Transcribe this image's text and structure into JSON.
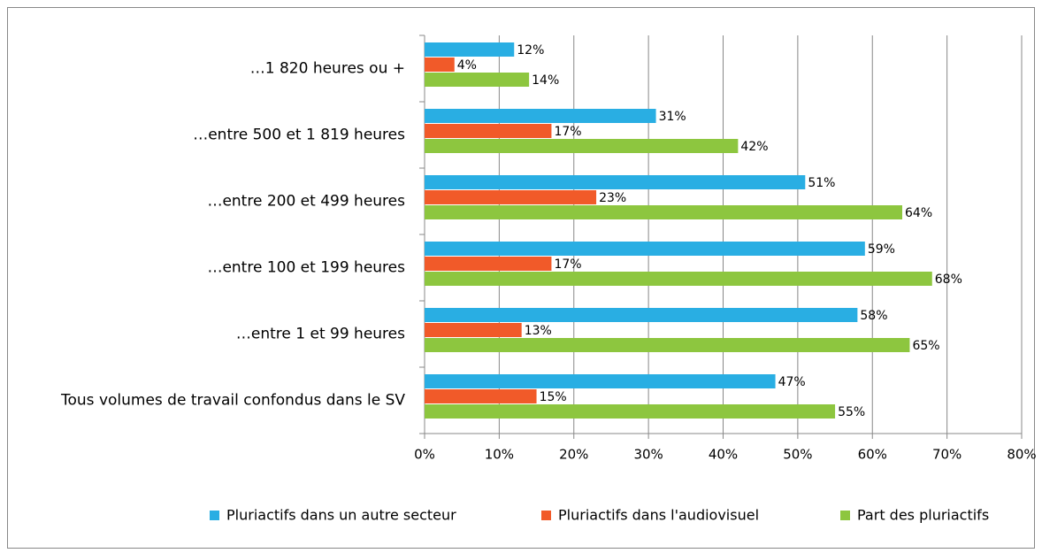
{
  "chart_data": {
    "type": "hbar",
    "categories": [
      "…1 820 heures ou +",
      "…entre 500 et 1 819 heures",
      "…entre 200 et 499 heures",
      "…entre 100 et 199 heures",
      "…entre 1 et 99 heures",
      "Tous volumes de travail confondus dans le SV"
    ],
    "series": [
      {
        "name": "Pluriactifs dans un autre secteur",
        "color": "#29aee3",
        "values": [
          12,
          31,
          51,
          59,
          58,
          47
        ],
        "value_labels": [
          "12%",
          "31%",
          "51%",
          "59%",
          "58%",
          "47%"
        ]
      },
      {
        "name": "Pluriactifs dans l'audiovisuel",
        "color": "#f15a29",
        "values": [
          4,
          17,
          23,
          17,
          13,
          15
        ],
        "value_labels": [
          "4%",
          "17%",
          "23%",
          "17%",
          "13%",
          "15%"
        ]
      },
      {
        "name": "Part des pluriactifs",
        "color": "#8dc63f",
        "values": [
          14,
          42,
          64,
          68,
          65,
          55
        ],
        "value_labels": [
          "14%",
          "42%",
          "64%",
          "68%",
          "65%",
          "55%"
        ]
      }
    ],
    "xlim": [
      0,
      80
    ],
    "xticks": [
      {
        "value": 0,
        "label": "0%"
      },
      {
        "value": 10,
        "label": "10%"
      },
      {
        "value": 20,
        "label": "20%"
      },
      {
        "value": 30,
        "label": "30%"
      },
      {
        "value": 40,
        "label": "40%"
      },
      {
        "value": 50,
        "label": "50%"
      },
      {
        "value": 60,
        "label": "60%"
      },
      {
        "value": 70,
        "label": "70%"
      },
      {
        "value": 80,
        "label": "80%"
      }
    ],
    "grid": true,
    "legend": "bottom"
  }
}
